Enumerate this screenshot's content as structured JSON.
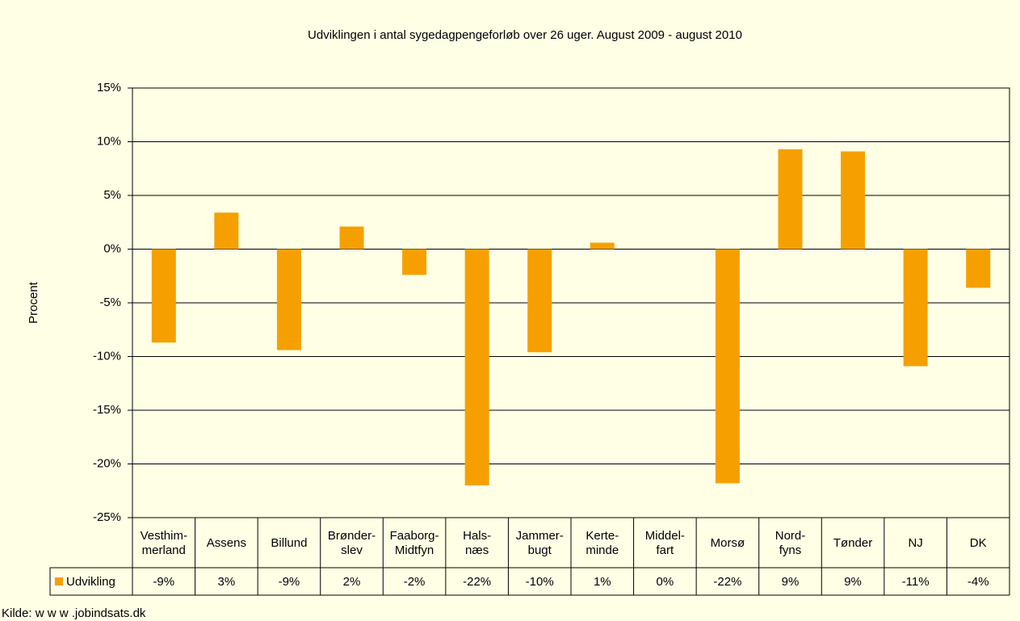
{
  "chart_data": {
    "type": "bar",
    "title": "Udviklingen i antal sygedagpengeforløb over 26 uger. August 2009 - august 2010",
    "y_label": "Procent",
    "source": "Kilde: w w w .jobindsats.dk",
    "categories": [
      "Vesthim-\nmerland",
      "Assens",
      "Billund",
      "Brønder-\nslev",
      "Faaborg-\nMidtfyn",
      "Hals-\nnæs",
      "Jammer-\nbugt",
      "Kerte-\nminde",
      "Middel-\nfart",
      "Morsø",
      "Nord-\nfyns",
      "Tønder",
      "NJ",
      "DK"
    ],
    "series": [
      {
        "name": "Udvikling",
        "color": "#f5a000",
        "values": [
          -8.7,
          3.4,
          -9.4,
          2.1,
          -2.4,
          -22.0,
          -9.6,
          0.6,
          0.0,
          -21.8,
          9.3,
          9.1,
          -10.9,
          -3.6
        ],
        "value_labels": [
          "-9%",
          "3%",
          "-9%",
          "2%",
          "-2%",
          "-22%",
          "-10%",
          "1%",
          "0%",
          "-22%",
          "9%",
          "9%",
          "-11%",
          "-4%"
        ]
      }
    ],
    "ylim": [
      -25,
      15
    ],
    "yticks": [
      {
        "value": -25,
        "label": "-25%"
      },
      {
        "value": -20,
        "label": "-20%"
      },
      {
        "value": -15,
        "label": "-15%"
      },
      {
        "value": -10,
        "label": "-10%"
      },
      {
        "value": -5,
        "label": "-5%"
      },
      {
        "value": 0,
        "label": "0%"
      },
      {
        "value": 5,
        "label": "5%"
      },
      {
        "value": 10,
        "label": "10%"
      },
      {
        "value": 15,
        "label": "15%"
      }
    ],
    "grid": true,
    "legend": "table"
  }
}
